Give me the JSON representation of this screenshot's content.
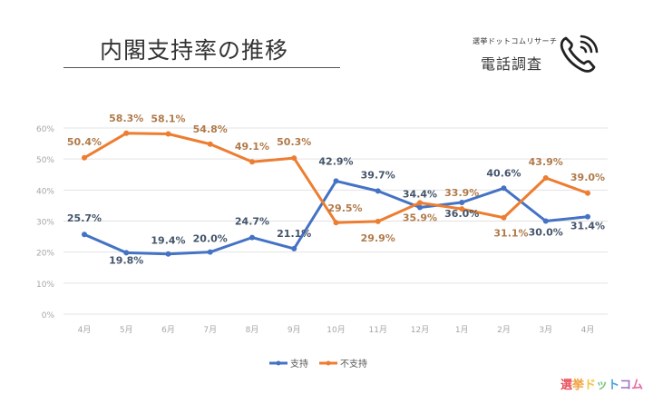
{
  "header": {
    "title": "内閣支持率の推移",
    "brand_sub": "選挙ドットコムリサーチ",
    "brand_main": "電話調査",
    "phone_icon": "phone-icon"
  },
  "logo": {
    "text": "選挙ドットコム",
    "colors": [
      "#e8505b",
      "#f2a03d",
      "#f6c445",
      "#7bc67e",
      "#4aa3df",
      "#9b6fd0",
      "#e86aa6"
    ]
  },
  "chart_data": {
    "type": "line",
    "title": "内閣支持率の推移",
    "xlabel": "",
    "ylabel": "",
    "categories": [
      "4月",
      "5月",
      "6月",
      "7月",
      "8月",
      "9月",
      "10月",
      "11月",
      "12月",
      "1月",
      "2月",
      "3月",
      "4月"
    ],
    "ylim": [
      0,
      60
    ],
    "yticks": [
      "0%",
      "10%",
      "20%",
      "30%",
      "40%",
      "50%",
      "60%"
    ],
    "ytick_values": [
      0,
      10,
      20,
      30,
      40,
      50,
      60
    ],
    "grid": true,
    "legend_position": "bottom",
    "series": [
      {
        "name": "支持",
        "color": "#4472c4",
        "label_color": "#44546a",
        "values": [
          25.7,
          19.8,
          19.4,
          20.0,
          24.7,
          21.1,
          42.9,
          39.7,
          34.4,
          36.0,
          40.6,
          30.0,
          31.4
        ],
        "labels": [
          "25.7%",
          "19.8%",
          "19.4%",
          "20.0%",
          "24.7%",
          "21.1%",
          "42.9%",
          "39.7%",
          "34.4%",
          "36.0%",
          "40.6%",
          "30.0%",
          "31.4%"
        ]
      },
      {
        "name": "不支持",
        "color": "#ed7d31",
        "label_color": "#b07a4a",
        "values": [
          50.4,
          58.3,
          58.1,
          54.8,
          49.1,
          50.3,
          29.5,
          29.9,
          35.9,
          33.9,
          31.1,
          43.9,
          39.0
        ],
        "labels": [
          "50.4%",
          "58.3%",
          "58.1%",
          "54.8%",
          "49.1%",
          "50.3%",
          "29.5%",
          "29.9%",
          "35.9%",
          "33.9%",
          "31.1%",
          "43.9%",
          "39.0%"
        ]
      }
    ]
  }
}
